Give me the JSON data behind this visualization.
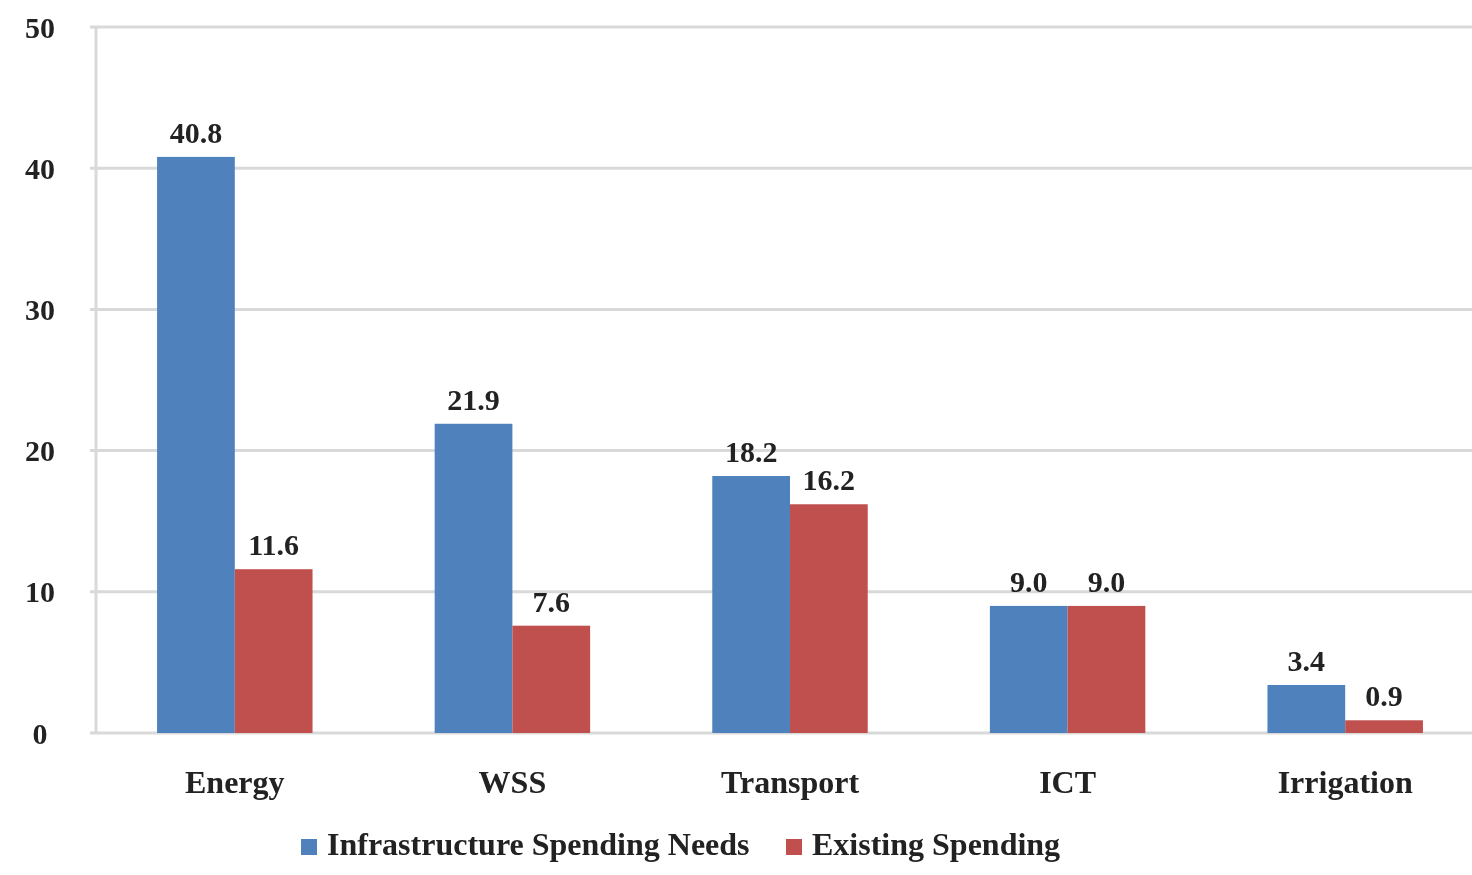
{
  "chart_data": {
    "type": "bar",
    "categories": [
      "Energy",
      "WSS",
      "Transport",
      "ICT",
      "Irrigation"
    ],
    "series": [
      {
        "name": "Infrastructure Spending Needs",
        "color": "#4f81bd",
        "values": [
          40.8,
          21.9,
          18.2,
          9.0,
          3.4
        ]
      },
      {
        "name": "Existing Spending",
        "color": "#c0504d",
        "values": [
          11.6,
          7.6,
          16.2,
          9.0,
          0.9
        ]
      }
    ],
    "value_labels": [
      [
        "40.8",
        "21.9",
        "18.2",
        "9.0",
        "3.4"
      ],
      [
        "11.6",
        "7.6",
        "16.2",
        "9.0",
        "0.9"
      ]
    ],
    "ylim": [
      0,
      50
    ],
    "yticks": [
      0,
      10,
      20,
      30,
      40,
      50
    ],
    "grid": "y",
    "legend": "bottom"
  }
}
